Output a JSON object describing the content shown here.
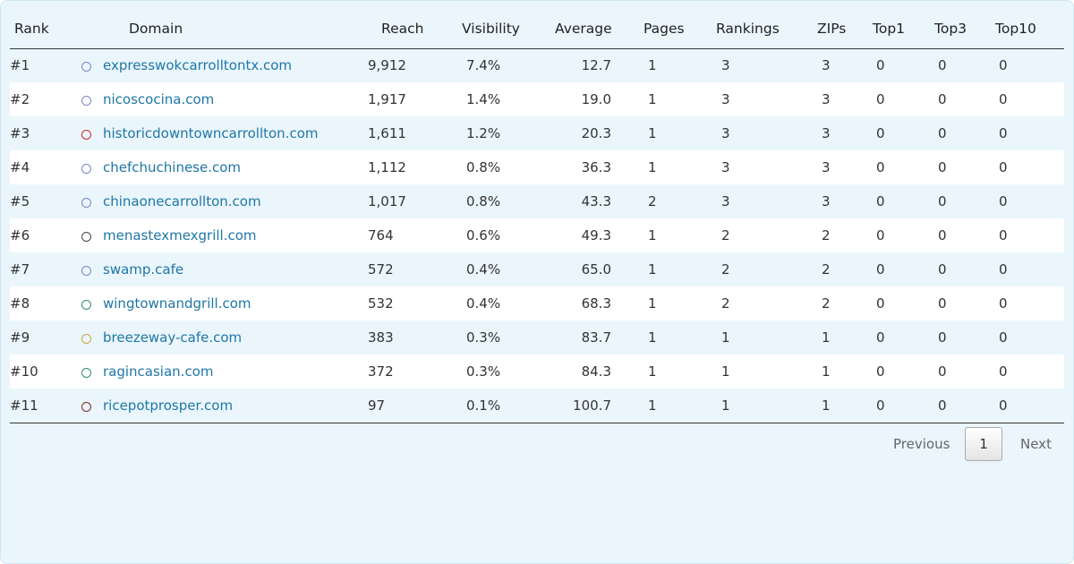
{
  "table": {
    "headers": [
      "Rank",
      "Domain",
      "Reach",
      "Visibility",
      "Average",
      "Pages",
      "Rankings",
      "ZIPs",
      "Top1",
      "Top3",
      "Top10"
    ],
    "rows": [
      [
        "#1",
        "expresswokcarrolltontx.com",
        "9,912",
        "7.4%",
        "12.7",
        "1",
        "3",
        "3",
        "0",
        "0",
        "0"
      ],
      [
        "#2",
        "nicoscocina.com",
        "1,917",
        "1.4%",
        "19.0",
        "1",
        "3",
        "3",
        "0",
        "0",
        "0"
      ],
      [
        "#3",
        "historicdowntowncarrollton.com",
        "1,611",
        "1.2%",
        "20.3",
        "1",
        "3",
        "3",
        "0",
        "0",
        "0"
      ],
      [
        "#4",
        "chefchuchinese.com",
        "1,112",
        "0.8%",
        "36.3",
        "1",
        "3",
        "3",
        "0",
        "0",
        "0"
      ],
      [
        "#5",
        "chinaonecarrollton.com",
        "1,017",
        "0.8%",
        "43.3",
        "2",
        "3",
        "3",
        "0",
        "0",
        "0"
      ],
      [
        "#6",
        "menastexmexgrill.com",
        "764",
        "0.6%",
        "49.3",
        "1",
        "2",
        "2",
        "0",
        "0",
        "0"
      ],
      [
        "#7",
        "swamp.cafe",
        "572",
        "0.4%",
        "65.0",
        "1",
        "2",
        "2",
        "0",
        "0",
        "0"
      ],
      [
        "#8",
        "wingtownandgrill.com",
        "532",
        "0.4%",
        "68.3",
        "1",
        "2",
        "2",
        "0",
        "0",
        "0"
      ],
      [
        "#9",
        "breezeway-cafe.com",
        "383",
        "0.3%",
        "83.7",
        "1",
        "1",
        "1",
        "0",
        "0",
        "0"
      ],
      [
        "#10",
        "ragincasian.com",
        "372",
        "0.3%",
        "84.3",
        "1",
        "1",
        "1",
        "0",
        "0",
        "0"
      ],
      [
        "#11",
        "ricepotprosper.com",
        "97",
        "0.1%",
        "100.7",
        "1",
        "1",
        "1",
        "0",
        "0",
        "0"
      ]
    ]
  },
  "pagination": {
    "previous": "Previous",
    "current": "1",
    "next": "Next"
  }
}
